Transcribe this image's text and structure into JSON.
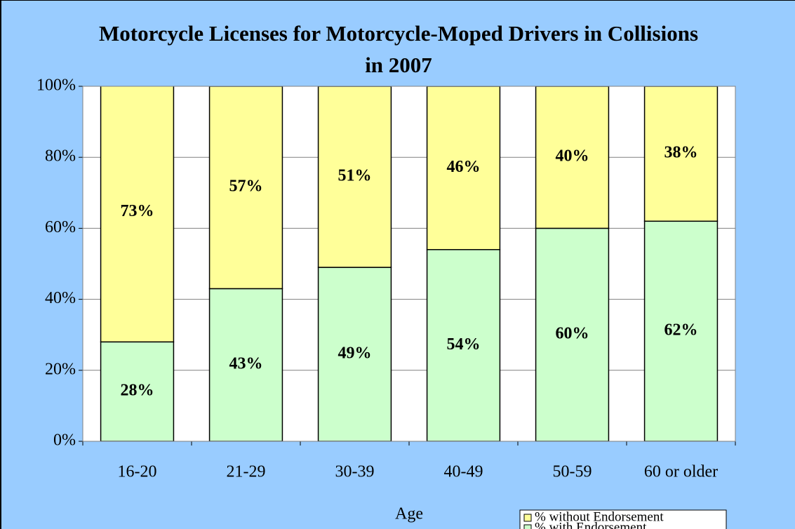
{
  "chart_data": {
    "type": "stacked_bar",
    "title": "Motorcycle Licenses for Motorcycle-Moped Drivers in Collisions in 2007",
    "x_label": "Age",
    "categories": [
      "16-20",
      "21-29",
      "30-39",
      "40-49",
      "50-59",
      "60 or older"
    ],
    "series": [
      {
        "name": "% with Endorsement",
        "color": "#ccffcc",
        "values": [
          28,
          43,
          49,
          54,
          60,
          62
        ],
        "value_labels": [
          "28%",
          "43%",
          "49%",
          "54%",
          "60%",
          "62%"
        ]
      },
      {
        "name": "% without Endorsement",
        "color": "#ffff99",
        "values": [
          73,
          57,
          51,
          46,
          40,
          38
        ],
        "value_labels": [
          "73%",
          "57%",
          "51%",
          "46%",
          "40%",
          "38%"
        ]
      }
    ],
    "ylim": [
      0,
      100
    ],
    "yticks": [
      {
        "value": 0,
        "label": "0%"
      },
      {
        "value": 20,
        "label": "20%"
      },
      {
        "value": 40,
        "label": "40%"
      },
      {
        "value": 60,
        "label": "60%"
      },
      {
        "value": 80,
        "label": "80%"
      },
      {
        "value": 100,
        "label": "100%"
      }
    ],
    "grid": true,
    "legend": "bottom-right"
  }
}
